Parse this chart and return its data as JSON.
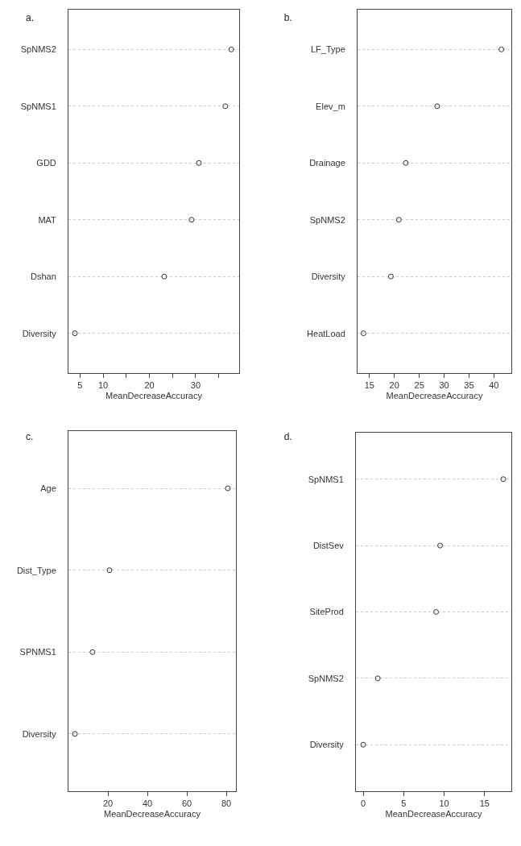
{
  "chart_data": [
    {
      "type": "scatter",
      "orientation": "horizontal",
      "title": "a.",
      "xlabel": "MeanDecreaseAccuracy",
      "categories": [
        "SpNMS2",
        "SpNMS1",
        "GDD",
        "MAT",
        "Dshan",
        "Diversity"
      ],
      "values": [
        37.7,
        36.4,
        30.7,
        29.1,
        23.2,
        3.9
      ],
      "color": "#333333",
      "marker": "circle",
      "grid": "y",
      "xlim": [
        2.5,
        39.4
      ],
      "xticks": [
        5,
        10,
        {
          "value": 15,
          "label": null
        },
        20,
        {
          "value": 25,
          "label": null
        },
        30,
        {
          "value": 35,
          "label": null
        }
      ]
    },
    {
      "type": "scatter",
      "orientation": "horizontal",
      "title": "b.",
      "xlabel": "MeanDecreaseAccuracy",
      "categories": [
        "LF_Type",
        "Elev_m",
        "Drainage",
        "SpNMS2",
        "Diversity",
        "HeatLoad"
      ],
      "values": [
        41.5,
        28.6,
        22.3,
        20.9,
        19.3,
        13.8
      ],
      "color": "#333333",
      "marker": "circle",
      "grid": "y",
      "xlim": [
        12.6,
        43.5
      ],
      "xticks": [
        15,
        20,
        25,
        30,
        35,
        40
      ]
    },
    {
      "type": "scatter",
      "orientation": "horizontal",
      "title": "c.",
      "xlabel": "MeanDecreaseAccuracy",
      "categories": [
        "Age",
        "Dist_Type",
        "SPNMS1",
        "Diversity"
      ],
      "values": [
        80.8,
        20.8,
        12.2,
        3.3
      ],
      "color": "#333333",
      "marker": "circle",
      "grid": "y",
      "xlim": [
        0,
        84.9
      ],
      "xticks": [
        20,
        40,
        60,
        80
      ]
    },
    {
      "type": "scatter",
      "orientation": "horizontal",
      "title": "d.",
      "xlabel": "MeanDecreaseAccuracy",
      "categories": [
        "SpNMS1",
        "DistSev",
        "SiteProd",
        "SpNMS2",
        "Diversity"
      ],
      "values": [
        17.3,
        9.5,
        9.0,
        1.8,
        0
      ],
      "color": "#333333",
      "marker": "circle",
      "grid": "y",
      "xlim": [
        -0.9,
        18.3
      ],
      "xticks": [
        0,
        5,
        10,
        15
      ]
    }
  ]
}
